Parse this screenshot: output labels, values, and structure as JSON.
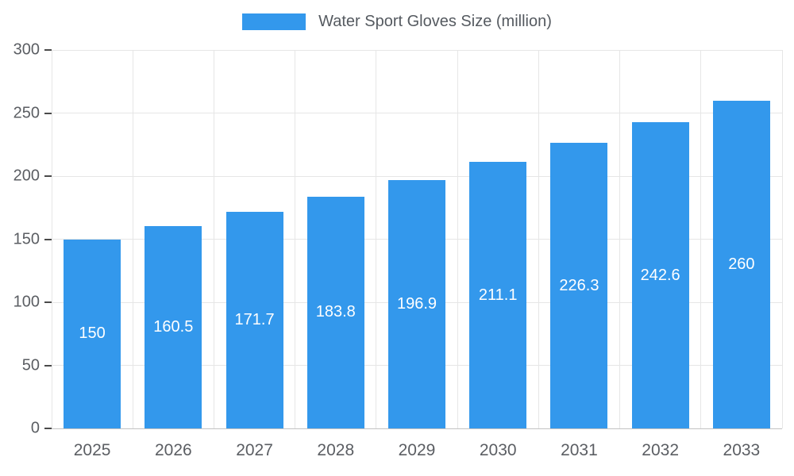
{
  "legend": {
    "label": "Water Sport Gloves Size (million)"
  },
  "colors": {
    "bar": "#3398ec",
    "grid": "#e6e6e6",
    "axis_text": "#5b5e63",
    "value_text": "#ffffff"
  },
  "chart_data": {
    "type": "bar",
    "title": "Water Sport Gloves Size (million)",
    "categories": [
      "2025",
      "2026",
      "2027",
      "2028",
      "2029",
      "2030",
      "2031",
      "2032",
      "2033"
    ],
    "values": [
      150,
      160.5,
      171.7,
      183.8,
      196.9,
      211.1,
      226.3,
      242.6,
      260
    ],
    "xlabel": "",
    "ylabel": "",
    "ylim": [
      0,
      300
    ],
    "ytick_step": 50,
    "grid": true,
    "legend_position": "top",
    "value_labels": "inside-center"
  }
}
